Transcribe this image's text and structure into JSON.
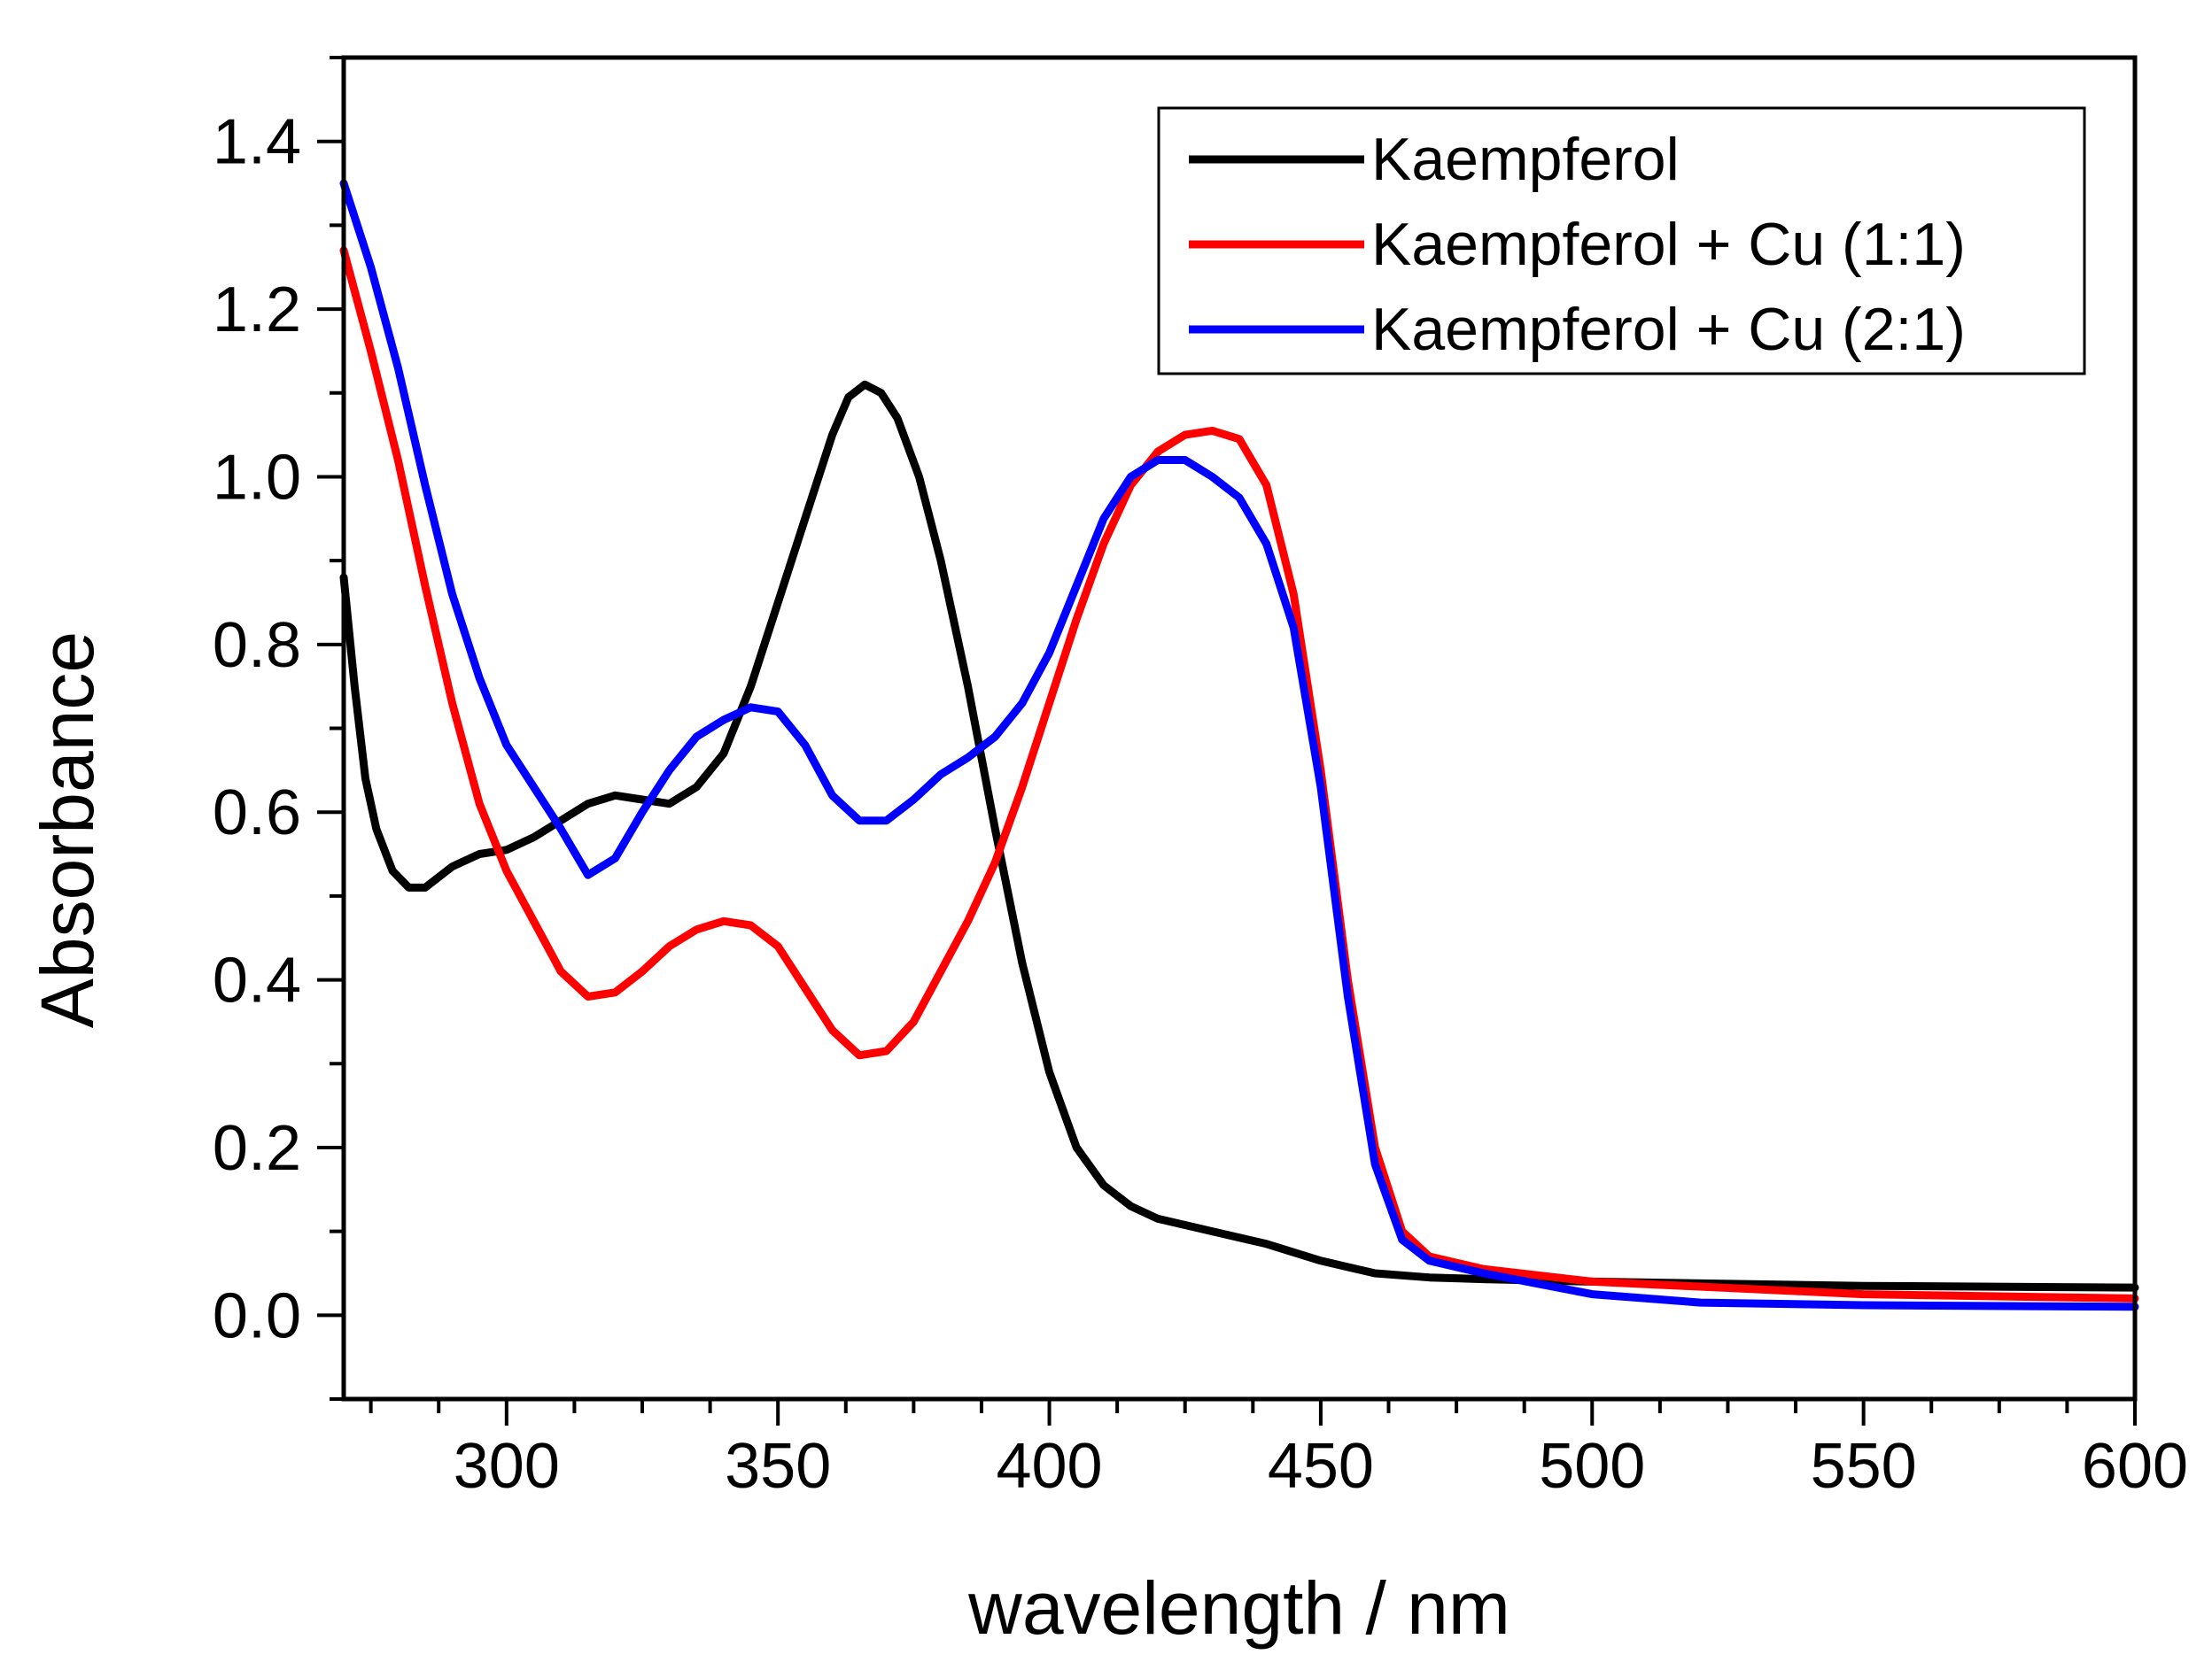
{
  "chart_data": {
    "type": "line",
    "title": "",
    "xlabel": "wavelength / nm",
    "ylabel": "Absorbance",
    "xlim": [
      270,
      600
    ],
    "ylim": [
      -0.1,
      1.5
    ],
    "xticks": [
      300,
      350,
      400,
      450,
      500,
      550,
      600
    ],
    "xtick_labels": [
      "300",
      "350",
      "400",
      "450",
      "500",
      "550",
      "600"
    ],
    "xminor_step": 12.5,
    "yticks": [
      0.0,
      0.2,
      0.4,
      0.6,
      0.8,
      1.0,
      1.2,
      1.4
    ],
    "ytick_labels": [
      "0.0",
      "0.2",
      "0.4",
      "0.6",
      "0.8",
      "1.0",
      "1.2",
      "1.4"
    ],
    "yminor_step": 0.1,
    "grid": false,
    "legend_position": "top-right",
    "series": [
      {
        "name": "Kaempferol",
        "color": "#000000",
        "points": [
          [
            270,
            0.88
          ],
          [
            272,
            0.75
          ],
          [
            274,
            0.64
          ],
          [
            276,
            0.58
          ],
          [
            279,
            0.53
          ],
          [
            282,
            0.51
          ],
          [
            285,
            0.51
          ],
          [
            290,
            0.535
          ],
          [
            295,
            0.55
          ],
          [
            300,
            0.555
          ],
          [
            305,
            0.57
          ],
          [
            310,
            0.59
          ],
          [
            315,
            0.61
          ],
          [
            320,
            0.62
          ],
          [
            325,
            0.615
          ],
          [
            330,
            0.61
          ],
          [
            335,
            0.63
          ],
          [
            340,
            0.67
          ],
          [
            345,
            0.75
          ],
          [
            350,
            0.85
          ],
          [
            355,
            0.95
          ],
          [
            360,
            1.05
          ],
          [
            363,
            1.095
          ],
          [
            366,
            1.11
          ],
          [
            369,
            1.1
          ],
          [
            372,
            1.07
          ],
          [
            376,
            1.0
          ],
          [
            380,
            0.9
          ],
          [
            385,
            0.75
          ],
          [
            390,
            0.58
          ],
          [
            395,
            0.42
          ],
          [
            400,
            0.29
          ],
          [
            405,
            0.2
          ],
          [
            410,
            0.155
          ],
          [
            415,
            0.13
          ],
          [
            420,
            0.115
          ],
          [
            430,
            0.1
          ],
          [
            440,
            0.085
          ],
          [
            450,
            0.065
          ],
          [
            460,
            0.05
          ],
          [
            470,
            0.045
          ],
          [
            480,
            0.043
          ],
          [
            500,
            0.04
          ],
          [
            550,
            0.035
          ],
          [
            600,
            0.033
          ]
        ]
      },
      {
        "name": "Kaempferol + Cu (1:1)",
        "color": "#ff0000",
        "points": [
          [
            270,
            1.27
          ],
          [
            275,
            1.15
          ],
          [
            280,
            1.02
          ],
          [
            285,
            0.87
          ],
          [
            290,
            0.73
          ],
          [
            295,
            0.61
          ],
          [
            300,
            0.53
          ],
          [
            305,
            0.47
          ],
          [
            310,
            0.41
          ],
          [
            315,
            0.38
          ],
          [
            320,
            0.385
          ],
          [
            325,
            0.41
          ],
          [
            330,
            0.44
          ],
          [
            335,
            0.46
          ],
          [
            340,
            0.47
          ],
          [
            345,
            0.465
          ],
          [
            350,
            0.44
          ],
          [
            355,
            0.39
          ],
          [
            360,
            0.34
          ],
          [
            365,
            0.31
          ],
          [
            370,
            0.315
          ],
          [
            375,
            0.35
          ],
          [
            380,
            0.41
          ],
          [
            385,
            0.47
          ],
          [
            390,
            0.54
          ],
          [
            395,
            0.63
          ],
          [
            400,
            0.73
          ],
          [
            405,
            0.83
          ],
          [
            410,
            0.92
          ],
          [
            415,
            0.99
          ],
          [
            420,
            1.03
          ],
          [
            425,
            1.05
          ],
          [
            430,
            1.055
          ],
          [
            435,
            1.045
          ],
          [
            440,
            0.99
          ],
          [
            445,
            0.86
          ],
          [
            450,
            0.65
          ],
          [
            455,
            0.4
          ],
          [
            460,
            0.2
          ],
          [
            465,
            0.1
          ],
          [
            470,
            0.07
          ],
          [
            480,
            0.055
          ],
          [
            500,
            0.04
          ],
          [
            550,
            0.025
          ],
          [
            600,
            0.02
          ]
        ]
      },
      {
        "name": "Kaempferol + Cu (2:1)",
        "color": "#0000ff",
        "points": [
          [
            270,
            1.35
          ],
          [
            275,
            1.25
          ],
          [
            280,
            1.13
          ],
          [
            285,
            0.99
          ],
          [
            290,
            0.86
          ],
          [
            295,
            0.76
          ],
          [
            300,
            0.68
          ],
          [
            305,
            0.63
          ],
          [
            310,
            0.58
          ],
          [
            315,
            0.525
          ],
          [
            320,
            0.545
          ],
          [
            325,
            0.6
          ],
          [
            330,
            0.65
          ],
          [
            335,
            0.69
          ],
          [
            340,
            0.71
          ],
          [
            345,
            0.725
          ],
          [
            350,
            0.72
          ],
          [
            355,
            0.68
          ],
          [
            360,
            0.62
          ],
          [
            365,
            0.59
          ],
          [
            370,
            0.59
          ],
          [
            375,
            0.615
          ],
          [
            380,
            0.645
          ],
          [
            385,
            0.665
          ],
          [
            390,
            0.69
          ],
          [
            395,
            0.73
          ],
          [
            400,
            0.79
          ],
          [
            405,
            0.87
          ],
          [
            410,
            0.95
          ],
          [
            415,
            1.0
          ],
          [
            420,
            1.02
          ],
          [
            425,
            1.02
          ],
          [
            430,
            1.0
          ],
          [
            435,
            0.975
          ],
          [
            440,
            0.92
          ],
          [
            445,
            0.82
          ],
          [
            450,
            0.63
          ],
          [
            455,
            0.38
          ],
          [
            460,
            0.18
          ],
          [
            465,
            0.09
          ],
          [
            470,
            0.065
          ],
          [
            480,
            0.05
          ],
          [
            500,
            0.025
          ],
          [
            520,
            0.015
          ],
          [
            550,
            0.012
          ],
          [
            600,
            0.01
          ]
        ]
      }
    ]
  }
}
